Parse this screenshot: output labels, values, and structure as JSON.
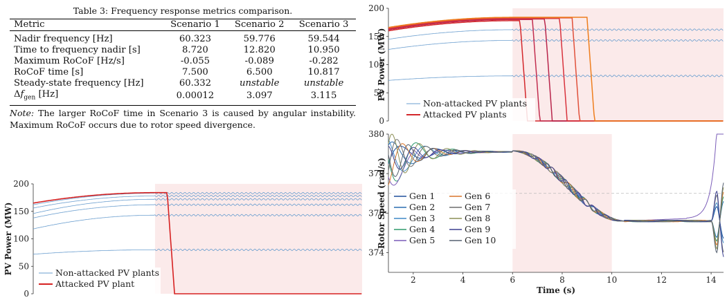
{
  "table": {
    "caption": "Table 3: Frequency response metrics comparison.",
    "headers": [
      "Metric",
      "Scenario 1",
      "Scenario 2",
      "Scenario 3"
    ],
    "rows": [
      [
        "Nadir frequency [Hz]",
        "60.323",
        "59.776",
        "59.544"
      ],
      [
        "Time to frequency nadir [s]",
        "8.720",
        "12.820",
        "10.950"
      ],
      [
        "Maximum RoCoF [Hz/s]",
        "-0.055",
        "-0.089",
        "-0.282"
      ],
      [
        "RoCoF time [s]",
        "7.500",
        "6.500",
        "10.817"
      ],
      [
        "Steady-state frequency [Hz]",
        "60.332",
        "unstable",
        "unstable"
      ],
      [
        "Δf_gen [Hz]",
        "0.00012",
        "3.097",
        "3.115"
      ]
    ],
    "note_label": "Note:",
    "note_text": "The larger RoCoF time in Scenario 3 is caused by angular instability. Maximum RoCoF occurs due to rotor speed divergence."
  },
  "chart_data": [
    {
      "id": "pv-single",
      "type": "line",
      "ylabel": "PV Power (MW)",
      "xlim": [
        1,
        14.5
      ],
      "ylim": [
        0,
        200
      ],
      "yticks": [
        0,
        50,
        100,
        150,
        200
      ],
      "shaded_region": [
        6,
        14.5
      ],
      "legend": [
        "Non-attacked PV plants",
        "Attacked PV plant"
      ],
      "non_attacked_levels": [
        183,
        178,
        172,
        162,
        143,
        80
      ],
      "non_attacked_start": [
        162,
        156,
        146,
        138,
        118,
        72
      ],
      "attacked": {
        "start": 165,
        "peak": 184,
        "trip_time": 6.5,
        "after": 0
      },
      "colors": {
        "non_attacked": "#6a9ecf",
        "attacked": "#d62020",
        "shade": "#fbeaea"
      }
    },
    {
      "id": "pv-multi",
      "type": "line",
      "ylabel": "PV Power (MW)",
      "xlim": [
        1,
        14.5
      ],
      "ylim": [
        0,
        200
      ],
      "yticks": [
        0,
        50,
        100,
        150,
        200
      ],
      "shaded_region": [
        6,
        14.5
      ],
      "legend": [
        "Non-attacked PV plants",
        "Attacked PV plants"
      ],
      "non_attacked_levels": [
        162,
        143,
        80
      ],
      "non_attacked_start": [
        145,
        127,
        72
      ],
      "attacked_trips": [
        {
          "start": 160,
          "peak": 178,
          "trip": 6.3,
          "color": "#d3262a"
        },
        {
          "start": 162,
          "peak": 180,
          "trip": 6.8,
          "color": "#c22d4e"
        },
        {
          "start": 163,
          "peak": 181,
          "trip": 7.3,
          "color": "#b8244a"
        },
        {
          "start": 164,
          "peak": 182,
          "trip": 7.9,
          "color": "#d8323c"
        },
        {
          "start": 165,
          "peak": 183,
          "trip": 8.4,
          "color": "#e0503a"
        },
        {
          "start": 166,
          "peak": 184,
          "trip": 9.0,
          "color": "#ee7d1c"
        }
      ],
      "colors": {
        "non_attacked": "#6a9ecf",
        "shade": "#fbeaea"
      }
    },
    {
      "id": "rotor-speed",
      "type": "line",
      "ylabel": "Rotor Speed (rad/s)",
      "xlabel": "Time (s)",
      "xlim": [
        1,
        14.5
      ],
      "ylim": [
        373,
        380
      ],
      "xticks": [
        2,
        4,
        6,
        8,
        10,
        12,
        14
      ],
      "yticks": [
        374,
        376,
        378,
        380
      ],
      "shaded_region": [
        6,
        10
      ],
      "reference_line": 377,
      "series": [
        {
          "name": "Gen 1",
          "color": "#1f4e9c"
        },
        {
          "name": "Gen 2",
          "color": "#2a6db0"
        },
        {
          "name": "Gen 3",
          "color": "#3f88c5"
        },
        {
          "name": "Gen 4",
          "color": "#2e9a6b"
        },
        {
          "name": "Gen 5",
          "color": "#7a5cb8"
        },
        {
          "name": "Gen 6",
          "color": "#d9752a"
        },
        {
          "name": "Gen 7",
          "color": "#6d6d6d"
        },
        {
          "name": "Gen 8",
          "color": "#8c8f55"
        },
        {
          "name": "Gen 9",
          "color": "#3b3f8f"
        },
        {
          "name": "Gen 10",
          "color": "#556070"
        }
      ]
    }
  ]
}
